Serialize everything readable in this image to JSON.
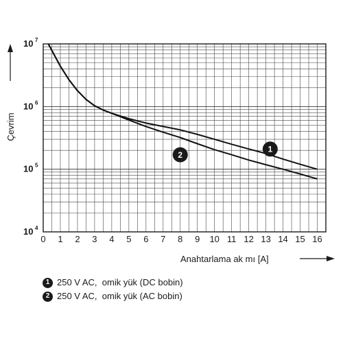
{
  "chart_data": {
    "type": "line",
    "xlabel": "Anahtarlama ak mı [A]",
    "ylabel": "Çevrim",
    "x_ticks": [
      "0",
      "1",
      "2",
      "3",
      "4",
      "5",
      "6",
      "7",
      "8",
      "9",
      "10",
      "11",
      "12",
      "13",
      "14",
      "15",
      "16"
    ],
    "xlim": [
      0,
      16.5
    ],
    "y_scale": "log",
    "ylim": [
      10000,
      10000000
    ],
    "y_ticks": [
      {
        "base": "10",
        "exp": "7",
        "value": 10000000
      },
      {
        "base": "10",
        "exp": "6",
        "value": 1000000
      },
      {
        "base": "10",
        "exp": "5",
        "value": 100000
      },
      {
        "base": "10",
        "exp": "4",
        "value": 10000
      }
    ],
    "grid": true,
    "series": [
      {
        "name": "1",
        "x": [
          0.3,
          0.5,
          1,
          1.5,
          2,
          2.5,
          3,
          3.5,
          4,
          5,
          6,
          7,
          8,
          9,
          10,
          11,
          12,
          13,
          14,
          15,
          16
        ],
        "y": [
          10000000,
          7900000,
          4400000,
          2680000,
          1790000,
          1300000,
          1030000,
          880000,
          780000,
          640000,
          545000,
          480000,
          425000,
          360000,
          300000,
          250000,
          210000,
          178000,
          145000,
          120000,
          100000
        ]
      },
      {
        "name": "2",
        "x": [
          0.3,
          0.5,
          1,
          1.5,
          2,
          2.5,
          3,
          3.5,
          4,
          5,
          6,
          7,
          8,
          9,
          10,
          11,
          12,
          13,
          14,
          15,
          16
        ],
        "y": [
          10000000,
          7900000,
          4400000,
          2680000,
          1790000,
          1300000,
          1030000,
          880000,
          780000,
          610000,
          480000,
          390000,
          320000,
          255000,
          205000,
          170000,
          140000,
          118000,
          100000,
          84000,
          70000
        ]
      }
    ],
    "legend": [
      {
        "marker": "1",
        "text": "250 V AC,  omik yük (DC bobin)"
      },
      {
        "marker": "2",
        "text": "250 V AC,  omik yük (AC bobin)"
      }
    ]
  }
}
